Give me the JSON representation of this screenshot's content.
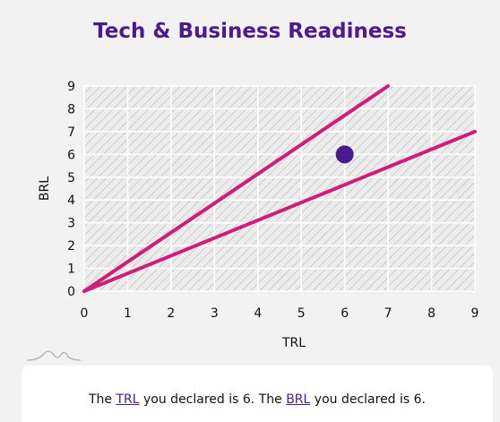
{
  "colors": {
    "title": "#4b1a8c",
    "line": "#d01e78",
    "point": "#4b1a8c",
    "hatch": "#c8c8c8",
    "grid": "#ffffff",
    "link": "#4b1a8c"
  },
  "icons": {
    "decor": "squiggle-icon"
  },
  "chart_data": {
    "type": "scatter",
    "title": "Tech & Business Readiness",
    "xlabel": "TRL",
    "ylabel": "BRL",
    "xlim": [
      0,
      9
    ],
    "ylim": [
      0,
      9
    ],
    "xticks": [
      "0",
      "1",
      "2",
      "3",
      "4",
      "5",
      "6",
      "7",
      "8",
      "9"
    ],
    "yticks": [
      "0",
      "1",
      "2",
      "3",
      "4",
      "5",
      "6",
      "7",
      "8",
      "9"
    ],
    "grid": true,
    "lines": [
      {
        "x": [
          0,
          7
        ],
        "y": [
          0,
          9
        ]
      },
      {
        "x": [
          0,
          9
        ],
        "y": [
          0,
          7
        ]
      }
    ],
    "points": [
      {
        "x": 6,
        "y": 6
      }
    ]
  },
  "summary": {
    "prefix": "The ",
    "trl_link": "TRL",
    "middle": " you declared is 6. The ",
    "brl_link": "BRL",
    "suffix": " you declared is 6."
  }
}
